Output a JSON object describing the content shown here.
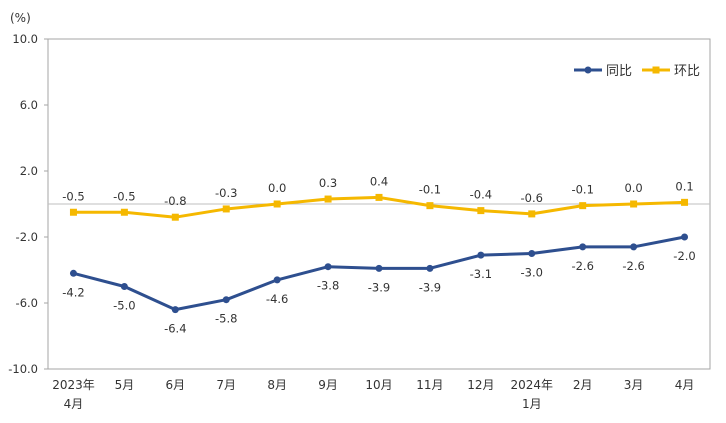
{
  "chart_data": {
    "type": "line",
    "title": "",
    "unit_label": "(%)",
    "xlabel": "",
    "ylabel": "",
    "ylim": [
      -10.0,
      10.0
    ],
    "yticks": [
      -10.0,
      -6.0,
      -2.0,
      2.0,
      6.0,
      10.0
    ],
    "ytick_labels": [
      "-10.0",
      "-6.0",
      "-2.0",
      "2.0",
      "6.0",
      "10.0"
    ],
    "categories": [
      {
        "line1": "2023年",
        "line2": "4月"
      },
      {
        "line1": "5月",
        "line2": ""
      },
      {
        "line1": "6月",
        "line2": ""
      },
      {
        "line1": "7月",
        "line2": ""
      },
      {
        "line1": "8月",
        "line2": ""
      },
      {
        "line1": "9月",
        "line2": ""
      },
      {
        "line1": "10月",
        "line2": ""
      },
      {
        "line1": "11月",
        "line2": ""
      },
      {
        "line1": "12月",
        "line2": ""
      },
      {
        "line1": "2024年",
        "line2": "1月"
      },
      {
        "line1": "2月",
        "line2": ""
      },
      {
        "line1": "3月",
        "line2": ""
      },
      {
        "line1": "4月",
        "line2": ""
      }
    ],
    "series": [
      {
        "name": "同比",
        "color": "#2e4f8f",
        "marker": "circle",
        "label_position": "below",
        "values": [
          -4.2,
          -5.0,
          -6.4,
          -5.8,
          -4.6,
          -3.8,
          -3.9,
          -3.9,
          -3.1,
          -3.0,
          -2.6,
          -2.6,
          -2.0
        ],
        "labels": [
          "-4.2",
          "-5.0",
          "-6.4",
          "-5.8",
          "-4.6",
          "-3.8",
          "-3.9",
          "-3.9",
          "-3.1",
          "-3.0",
          "-2.6",
          "-2.6",
          "-2.0"
        ]
      },
      {
        "name": "环比",
        "color": "#f5b800",
        "marker": "square",
        "label_position": "above",
        "values": [
          -0.5,
          -0.5,
          -0.8,
          -0.3,
          0.0,
          0.3,
          0.4,
          -0.1,
          -0.4,
          -0.6,
          -0.1,
          0.0,
          0.1
        ],
        "labels": [
          "-0.5",
          "-0.5",
          "-0.8",
          "-0.3",
          "0.0",
          "0.3",
          "0.4",
          "-0.1",
          "-0.4",
          "-0.6",
          "-0.1",
          "0.0",
          "0.1"
        ]
      }
    ],
    "zero_line": true,
    "grid": false,
    "legend_position": "top-right",
    "colors": {
      "axis": "#a6a6a6",
      "zero_line": "#bfbfbf",
      "text": "#333333"
    }
  }
}
